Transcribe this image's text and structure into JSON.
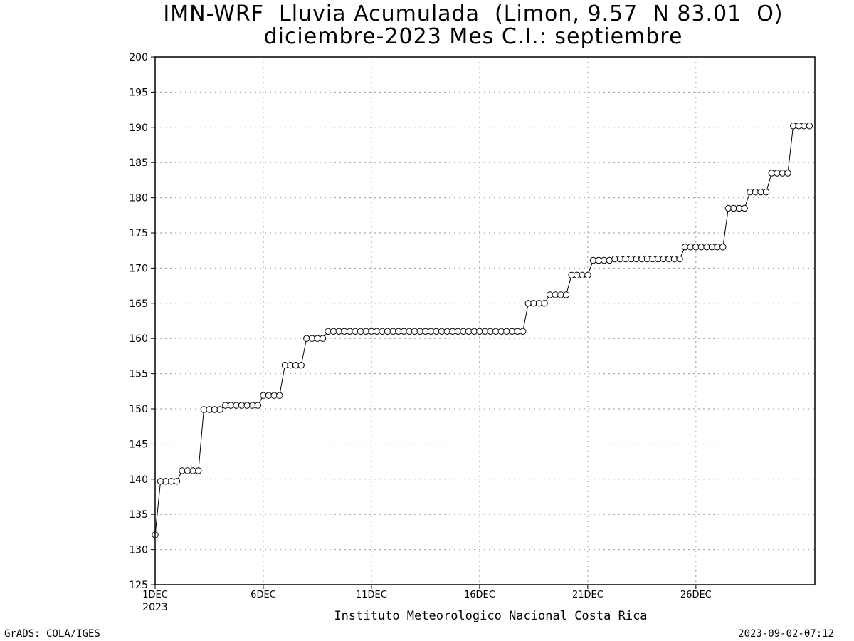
{
  "title_line1": "IMN-WRF  Lluvia Acumulada  (Limon, 9.57  N 83.01  O)",
  "title_line2": "diciembre-2023 Mes C.I.: septiembre",
  "footer_left": "GrADS: COLA/IGES",
  "footer_right": "2023-09-02-07:12",
  "chart_data": {
    "type": "line",
    "title": "IMN-WRF  Lluvia Acumulada  (Limon, 9.57  N 83.01  O)",
    "subtitle": "diciembre-2023 Mes C.I.: septiembre",
    "xlabel": "Instituto Meteorologico Nacional Costa Rica",
    "ylabel": "",
    "ylim": [
      125,
      200
    ],
    "yticks": [
      125,
      130,
      135,
      140,
      145,
      150,
      155,
      160,
      165,
      170,
      175,
      180,
      185,
      190,
      195,
      200
    ],
    "xlim": [
      1,
      31
    ],
    "xticks": [
      {
        "day": 1,
        "label": "1DEC",
        "sublabel": "2023"
      },
      {
        "day": 6,
        "label": "6DEC"
      },
      {
        "day": 11,
        "label": "11DEC"
      },
      {
        "day": 16,
        "label": "16DEC"
      },
      {
        "day": 21,
        "label": "21DEC"
      },
      {
        "day": 26,
        "label": "26DEC"
      }
    ],
    "grid": true,
    "series": [
      {
        "x_start_day": 1,
        "step_hours": 6,
        "values": [
          132.1,
          139.7,
          139.7,
          139.7,
          139.7,
          141.2,
          141.2,
          141.2,
          141.2,
          149.9,
          149.9,
          149.9,
          149.9,
          150.5,
          150.5,
          150.5,
          150.5,
          150.5,
          150.5,
          150.5,
          151.9,
          151.9,
          151.9,
          151.9,
          156.2,
          156.2,
          156.2,
          156.2,
          160.0,
          160.0,
          160.0,
          160.0,
          161.0,
          161.0,
          161.0,
          161.0,
          161.0,
          161.0,
          161.0,
          161.0,
          161.0,
          161.0,
          161.0,
          161.0,
          161.0,
          161.0,
          161.0,
          161.0,
          161.0,
          161.0,
          161.0,
          161.0,
          161.0,
          161.0,
          161.0,
          161.0,
          161.0,
          161.0,
          161.0,
          161.0,
          161.0,
          161.0,
          161.0,
          161.0,
          161.0,
          161.0,
          161.0,
          161.0,
          161.0,
          165.0,
          165.0,
          165.0,
          165.0,
          166.2,
          166.2,
          166.2,
          166.2,
          169.0,
          169.0,
          169.0,
          169.0,
          171.1,
          171.1,
          171.1,
          171.1,
          171.3,
          171.3,
          171.3,
          171.3,
          171.3,
          171.3,
          171.3,
          171.3,
          171.3,
          171.3,
          171.3,
          171.3,
          171.3,
          173.0,
          173.0,
          173.0,
          173.0,
          173.0,
          173.0,
          173.0,
          173.0,
          178.5,
          178.5,
          178.5,
          178.5,
          180.8,
          180.8,
          180.8,
          180.8,
          183.5,
          183.5,
          183.5,
          183.5,
          190.2,
          190.2,
          190.2,
          190.2
        ]
      }
    ]
  }
}
